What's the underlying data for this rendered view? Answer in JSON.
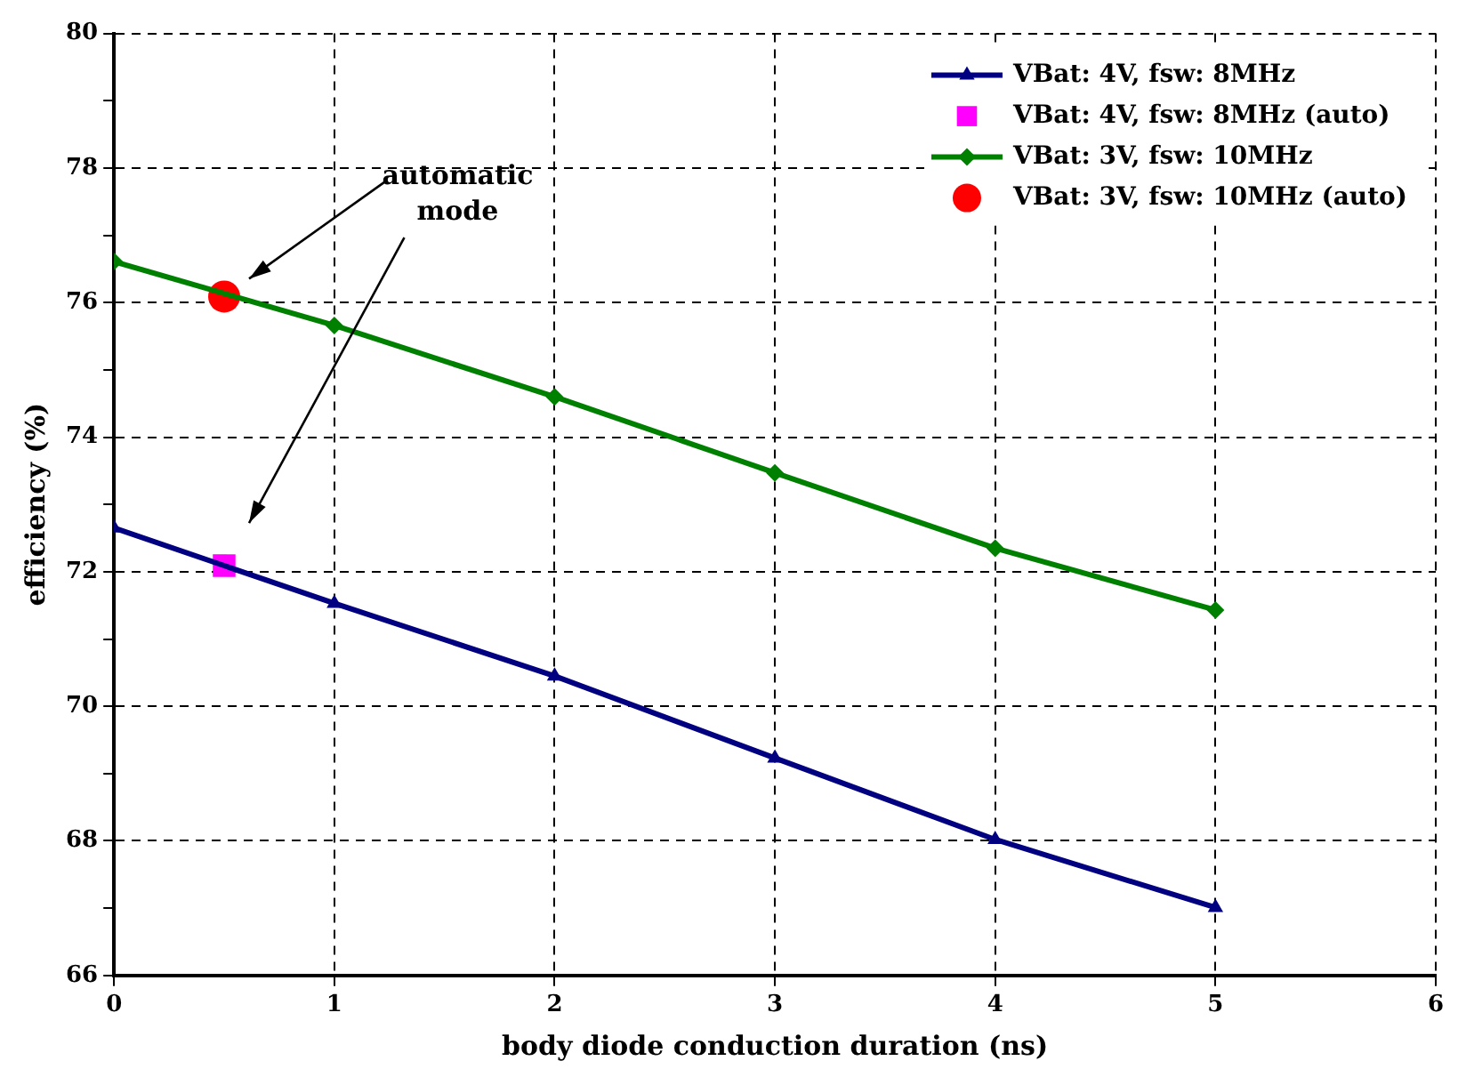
{
  "chart_data": {
    "type": "line",
    "xlabel": "body diode conduction duration (ns)",
    "ylabel": "efficiency (%)",
    "xlim": [
      0,
      6
    ],
    "xticks": [
      0,
      1,
      2,
      3,
      4,
      5,
      6
    ],
    "ylim": [
      66,
      80
    ],
    "yticks": [
      66,
      {
        "value": 67,
        "label": null
      },
      68,
      {
        "value": 69,
        "label": null
      },
      70,
      {
        "value": 71,
        "label": null
      },
      72,
      {
        "value": 73,
        "label": null
      },
      74,
      {
        "value": 75,
        "label": null
      },
      76,
      {
        "value": 77,
        "label": null
      },
      78,
      {
        "value": 79,
        "label": null
      },
      80
    ],
    "grid": true,
    "legend": "top right",
    "annotations": [
      "automatic mode"
    ],
    "series": [
      {
        "name": "VBat: 4V, fsw: 8MHz",
        "marker": "triangle",
        "color": "#000080",
        "x": [
          0,
          1,
          2,
          3,
          4,
          5
        ],
        "values": [
          72.65,
          71.53,
          70.45,
          69.23,
          68.02,
          67.01
        ]
      },
      {
        "name": "VBat: 4V, fsw: 8MHz (auto)",
        "type": "scatter",
        "marker": "square",
        "color": "#ff00ff",
        "x": [
          0.5
        ],
        "values": [
          72.09
        ]
      },
      {
        "name": "VBat: 3V, fsw: 10MHz",
        "marker": "diamond",
        "color": "#008000",
        "x": [
          0,
          1,
          2,
          3,
          4,
          5
        ],
        "values": [
          76.61,
          75.66,
          74.6,
          73.47,
          72.35,
          71.43
        ]
      },
      {
        "name": "VBat: 3V, fsw: 10MHz (auto)",
        "type": "scatter",
        "marker": "circle",
        "color": "#ff0000",
        "x": [
          0.5
        ],
        "values": [
          76.09
        ]
      }
    ]
  }
}
